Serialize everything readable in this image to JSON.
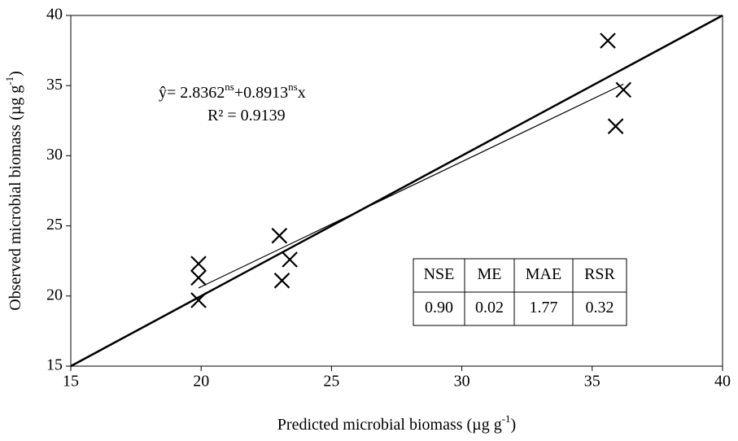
{
  "chart_data": {
    "type": "scatter",
    "x_label": {
      "text": "Predicted microbial biomass (µg g",
      "sup": "-1",
      "end": ")"
    },
    "y_label": {
      "text": "Observed microbial biomass (µg g",
      "sup": "-1",
      "end": ")"
    },
    "x": [
      19.9,
      19.9,
      19.9,
      23.0,
      23.4,
      23.1,
      35.6,
      36.2,
      35.9
    ],
    "values": [
      22.3,
      21.3,
      19.7,
      24.3,
      22.6,
      21.1,
      38.2,
      34.7,
      32.1
    ],
    "color": "#000000",
    "xlim": [
      15,
      40
    ],
    "xticks": [
      15,
      20,
      25,
      30,
      35,
      40
    ],
    "ylim": [
      15,
      40
    ],
    "yticks": [
      15,
      20,
      25,
      30,
      35,
      40
    ],
    "one_to_one_line": true,
    "regression": {
      "lhs": "ŷ= ",
      "intercept": 2.8362,
      "intercept_sup": "ns",
      "sign": "+",
      "slope": 0.8913,
      "slope_sup": "ns",
      "var": "x",
      "r2_label": "R² = ",
      "r2": 0.9139
    },
    "stats_table": {
      "header": [
        "NSE",
        "ME",
        "MAE",
        "RSR"
      ],
      "row": [
        "0.90",
        "0.02",
        "1.77",
        "0.32"
      ]
    }
  }
}
